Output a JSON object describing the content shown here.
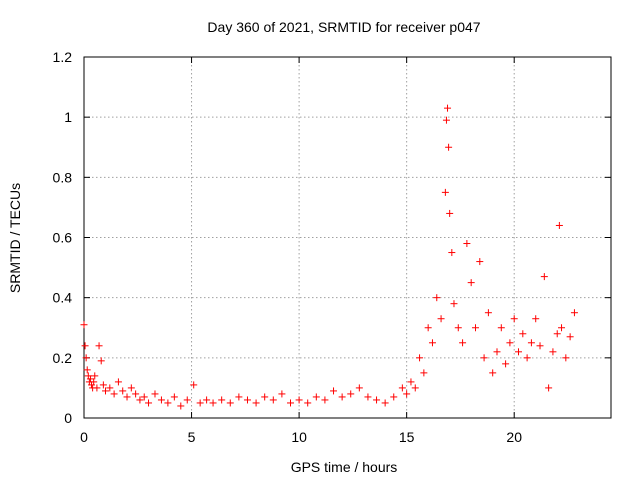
{
  "chart_data": {
    "type": "scatter",
    "title": "Day 360 of 2021, SRMTID for receiver p047",
    "xlabel": "GPS time / hours",
    "ylabel": "SRMTID / TECUs",
    "xlim": [
      0,
      24.5
    ],
    "ylim": [
      0,
      1.2
    ],
    "xticks": [
      0,
      5,
      10,
      15,
      20
    ],
    "yticks": [
      0,
      0.2,
      0.4,
      0.6,
      0.8,
      1,
      1.2
    ],
    "xtick_labels": [
      "0",
      "5",
      "10",
      "15",
      "20"
    ],
    "ytick_labels": [
      "0",
      "0.2",
      "0.4",
      "0.6",
      "0.8",
      "1",
      "1.2"
    ],
    "grid": true,
    "marker": "+",
    "color": "#ff0000",
    "series": [
      {
        "name": "SRMTID",
        "x": [
          0.0,
          0.05,
          0.1,
          0.15,
          0.2,
          0.25,
          0.3,
          0.35,
          0.4,
          0.45,
          0.5,
          0.6,
          0.7,
          0.8,
          0.9,
          1.0,
          1.2,
          1.4,
          1.6,
          1.8,
          2.0,
          2.2,
          2.4,
          2.6,
          2.8,
          3.0,
          3.3,
          3.6,
          3.9,
          4.2,
          4.5,
          4.8,
          5.1,
          5.4,
          5.7,
          6.0,
          6.4,
          6.8,
          7.2,
          7.6,
          8.0,
          8.4,
          8.8,
          9.2,
          9.6,
          10.0,
          10.4,
          10.8,
          11.2,
          11.6,
          12.0,
          12.4,
          12.8,
          13.2,
          13.6,
          14.0,
          14.4,
          14.8,
          15.0,
          15.2,
          15.4,
          15.6,
          15.8,
          16.0,
          16.2,
          16.4,
          16.6,
          16.8,
          16.85,
          16.9,
          16.95,
          17.0,
          17.1,
          17.2,
          17.4,
          17.6,
          17.8,
          18.0,
          18.2,
          18.4,
          18.6,
          18.8,
          19.0,
          19.2,
          19.4,
          19.6,
          19.8,
          20.0,
          20.2,
          20.4,
          20.6,
          20.8,
          21.0,
          21.2,
          21.4,
          21.6,
          21.8,
          22.0,
          22.1,
          22.2,
          22.4,
          22.6,
          22.8
        ],
        "y": [
          0.31,
          0.24,
          0.2,
          0.16,
          0.14,
          0.12,
          0.13,
          0.11,
          0.1,
          0.12,
          0.14,
          0.1,
          0.24,
          0.19,
          0.11,
          0.09,
          0.1,
          0.08,
          0.12,
          0.09,
          0.07,
          0.1,
          0.08,
          0.06,
          0.07,
          0.05,
          0.08,
          0.06,
          0.05,
          0.07,
          0.04,
          0.06,
          0.11,
          0.05,
          0.06,
          0.05,
          0.06,
          0.05,
          0.07,
          0.06,
          0.05,
          0.07,
          0.06,
          0.08,
          0.05,
          0.06,
          0.05,
          0.07,
          0.06,
          0.09,
          0.07,
          0.08,
          0.1,
          0.07,
          0.06,
          0.05,
          0.07,
          0.1,
          0.08,
          0.12,
          0.1,
          0.2,
          0.15,
          0.3,
          0.25,
          0.4,
          0.33,
          0.75,
          0.99,
          1.03,
          0.9,
          0.68,
          0.55,
          0.38,
          0.3,
          0.25,
          0.58,
          0.45,
          0.3,
          0.52,
          0.2,
          0.35,
          0.15,
          0.22,
          0.3,
          0.18,
          0.25,
          0.33,
          0.22,
          0.28,
          0.2,
          0.25,
          0.33,
          0.24,
          0.47,
          0.1,
          0.22,
          0.28,
          0.64,
          0.3,
          0.2,
          0.27,
          0.35
        ]
      }
    ]
  }
}
